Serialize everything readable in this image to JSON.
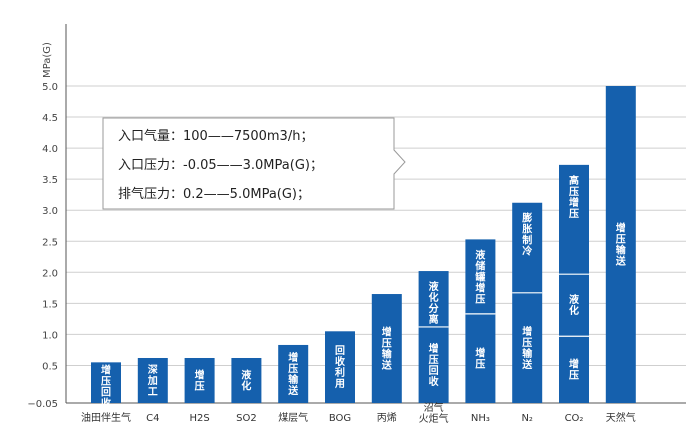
{
  "chart_data": {
    "type": "bar",
    "ylabel": "MPa(G)",
    "ylim": [
      -0.05,
      5.0
    ],
    "yticks": [
      "5.0",
      "4.5",
      "4.0",
      "3.5",
      "3.0",
      "2.5",
      "2.0",
      "1.5",
      "1.0",
      "0.5",
      "−0.05"
    ],
    "ytick_values": [
      5.0,
      4.5,
      4.0,
      3.5,
      3.0,
      2.5,
      2.0,
      1.5,
      1.0,
      0.5,
      -0.05
    ],
    "bar_color": "#1560ad",
    "categories": [
      {
        "label": "油田伴生气",
        "value": 0.55,
        "segments": [
          {
            "top": 0.55,
            "label": "增压回收"
          }
        ]
      },
      {
        "label": "C4",
        "value": 0.62,
        "segments": [
          {
            "top": 0.62,
            "label": "深加工"
          }
        ]
      },
      {
        "label": "H2S",
        "value": 0.62,
        "segments": [
          {
            "top": 0.62,
            "label": "增压"
          }
        ]
      },
      {
        "label": "SO2",
        "value": 0.62,
        "segments": [
          {
            "top": 0.62,
            "label": "液化"
          }
        ]
      },
      {
        "label": "煤层气",
        "value": 0.83,
        "segments": [
          {
            "top": 0.83,
            "label": "增压输送"
          }
        ]
      },
      {
        "label": "BOG",
        "value": 1.05,
        "segments": [
          {
            "top": 1.05,
            "label": "回收利用"
          }
        ]
      },
      {
        "label": "丙烯",
        "value": 1.65,
        "segments": [
          {
            "top": 1.65,
            "label": "增压输送"
          }
        ]
      },
      {
        "label": "沼气 火炬气",
        "value": 2.02,
        "segments": [
          {
            "top": 1.12,
            "label": "增压回收"
          },
          {
            "top": 2.02,
            "label": "液化分离"
          }
        ]
      },
      {
        "label": "NH₃",
        "value": 2.53,
        "segments": [
          {
            "top": 1.33,
            "label": "增压"
          },
          {
            "top": 2.53,
            "label": "液储罐增压"
          }
        ]
      },
      {
        "label": "N₂",
        "value": 3.12,
        "segments": [
          {
            "top": 1.67,
            "label": "增压输送"
          },
          {
            "top": 3.12,
            "label": "膨胀制冷"
          }
        ]
      },
      {
        "label": "CO₂",
        "value": 3.73,
        "segments": [
          {
            "top": 0.97,
            "label": "增压"
          },
          {
            "top": 1.97,
            "label": "液化"
          },
          {
            "top": 3.73,
            "label": "高压增压"
          }
        ]
      },
      {
        "label": "天然气",
        "value": 5.0,
        "segments": [
          {
            "top": 5.0,
            "label": "增压输送"
          }
        ]
      }
    ],
    "callout": [
      "入口气量：100——7500m3/h；",
      "入口压力：-0.05——3.0MPa(G)；",
      "排气压力：0.2——5.0MPa(G)；"
    ]
  }
}
